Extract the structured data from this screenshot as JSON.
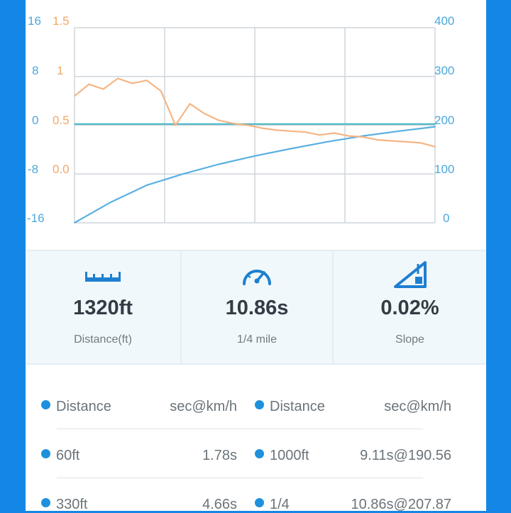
{
  "colors": {
    "speed": "#5ab0e2",
    "slope": "#48b8c4",
    "accel": "#f5b584",
    "grid": "#cfd6db",
    "accent": "#1e90dd"
  },
  "axes": {
    "left1_ticks": [
      "16",
      "8",
      "0",
      "-8",
      "-16"
    ],
    "left2_ticks": [
      "1.5",
      "1",
      "0.5",
      "0.0"
    ],
    "right_ticks": [
      "400",
      "300",
      "200",
      "100",
      "0"
    ]
  },
  "chart_data": {
    "type": "line",
    "series": [
      {
        "axis": "right",
        "x": [
          0,
          10,
          20,
          30,
          40,
          50,
          60,
          70,
          80,
          90,
          100
        ],
        "values": [
          0,
          42,
          77,
          100,
          120,
          137,
          152,
          166,
          178,
          188,
          197
        ]
      },
      {
        "axis": "left1",
        "x": [
          0,
          100
        ],
        "values": [
          0.2,
          0.2
        ]
      },
      {
        "axis": "left2",
        "x": [
          0,
          4,
          8,
          12,
          16,
          20,
          24,
          28,
          32,
          36,
          40,
          44,
          48,
          52,
          56,
          60,
          64,
          68,
          72,
          76,
          80,
          84,
          88,
          92,
          96,
          100
        ],
        "values": [
          0.8,
          0.92,
          0.87,
          0.98,
          0.93,
          0.96,
          0.85,
          0.5,
          0.72,
          0.62,
          0.55,
          0.52,
          0.5,
          0.47,
          0.45,
          0.44,
          0.43,
          0.4,
          0.42,
          0.39,
          0.38,
          0.35,
          0.34,
          0.33,
          0.32,
          0.28
        ]
      }
    ],
    "y_ranges": {
      "left1": [
        -16,
        16
      ],
      "left2": [
        -0.5,
        1.5
      ],
      "right": [
        0,
        400
      ]
    },
    "grid": true
  },
  "stats": [
    {
      "icon": "ruler-icon",
      "value": "1320ft",
      "caption": "Distance(ft)"
    },
    {
      "icon": "speedometer-icon",
      "value": "10.86s",
      "caption": "1/4 mile"
    },
    {
      "icon": "slope-icon",
      "value": "0.02%",
      "caption": "Slope"
    }
  ],
  "table": {
    "header": [
      "Distance",
      "sec@km/h",
      "Distance",
      "sec@km/h"
    ],
    "rows": [
      [
        "60ft",
        "1.78s",
        "1000ft",
        "9.11s@190.56"
      ],
      [
        "330ft",
        "4.66s",
        "1/4",
        "10.86s@207.87"
      ]
    ]
  }
}
